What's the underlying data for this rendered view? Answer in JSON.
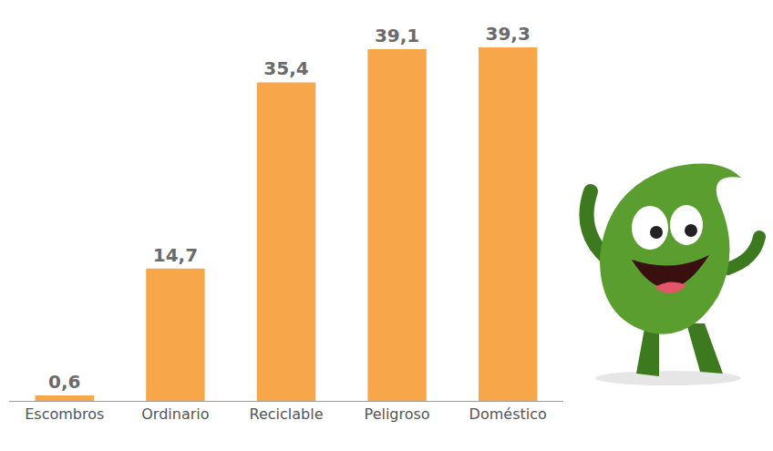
{
  "chart_data": {
    "type": "bar",
    "categories": [
      "Escombros",
      "Ordinario",
      "Reciclable",
      "Peligroso",
      "Doméstico"
    ],
    "values": [
      0.6,
      14.7,
      35.4,
      39.1,
      39.3
    ],
    "value_labels": [
      "0,6",
      "14,7",
      "35,4",
      "39,1",
      "39,3"
    ],
    "color": "#f7a64a",
    "ylim": [
      0,
      40
    ],
    "grid": false,
    "data_labels": true,
    "tick_labels": "x"
  }
}
